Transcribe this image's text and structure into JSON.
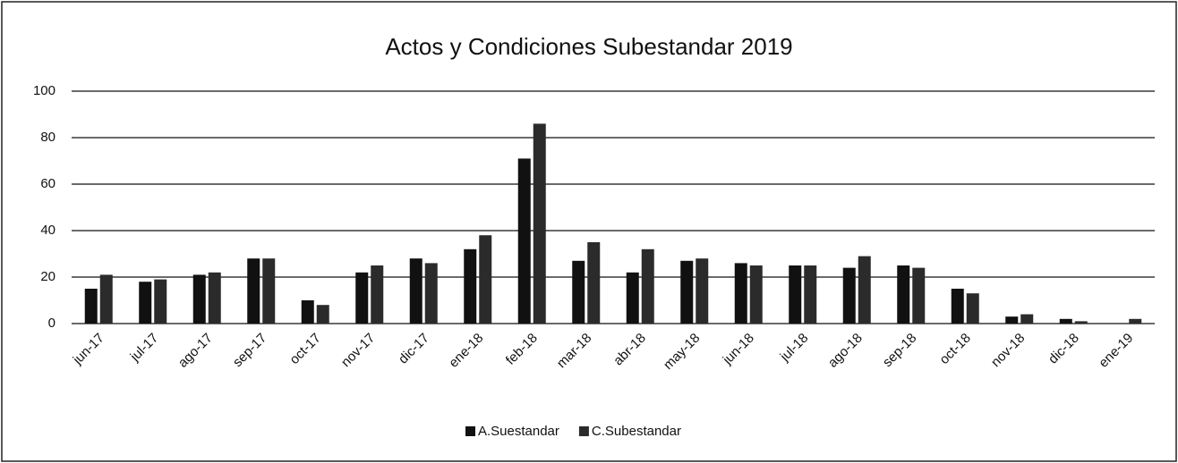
{
  "chart_data": {
    "type": "bar",
    "title": "Actos y Condiciones Subestandar 2019",
    "categories": [
      "jun-17",
      "jul-17",
      "ago-17",
      "sep-17",
      "oct-17",
      "nov-17",
      "dic-17",
      "ene-18",
      "feb-18",
      "mar-18",
      "abr-18",
      "may-18",
      "jun-18",
      "jul-18",
      "ago-18",
      "sep-18",
      "oct-18",
      "nov-18",
      "dic-18",
      "ene-19"
    ],
    "series": [
      {
        "name": "A.Suestandar",
        "color": "#111111",
        "values": [
          15,
          18,
          21,
          28,
          10,
          22,
          28,
          32,
          71,
          27,
          22,
          27,
          26,
          25,
          24,
          25,
          15,
          3,
          2,
          0
        ]
      },
      {
        "name": "C.Subestandar",
        "color": "#2b2b2b",
        "values": [
          21,
          19,
          22,
          28,
          8,
          25,
          26,
          38,
          86,
          35,
          32,
          28,
          25,
          25,
          29,
          24,
          13,
          4,
          1,
          2
        ]
      }
    ],
    "ylim": [
      0,
      100
    ],
    "yticks": [
      0,
      20,
      40,
      60,
      80,
      100
    ],
    "grid": true,
    "legend": "bottom"
  }
}
